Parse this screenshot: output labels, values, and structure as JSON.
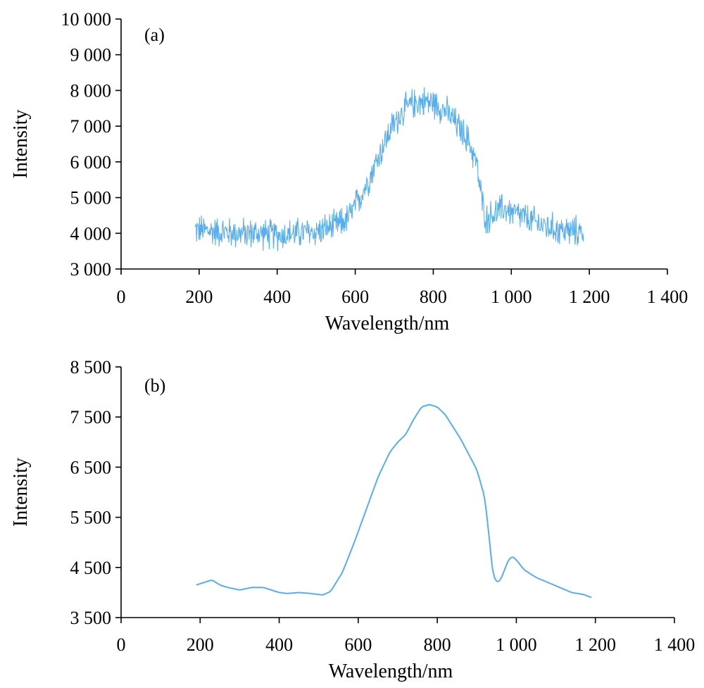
{
  "chart_data": [
    {
      "type": "line",
      "panel_label": "(a)",
      "xlabel": "Wavelength/nm",
      "ylabel": "Intensity",
      "xlim": [
        0,
        1400
      ],
      "ylim": [
        3000,
        10000
      ],
      "x_ticks": [
        0,
        200,
        400,
        600,
        800,
        1000,
        1200,
        1400
      ],
      "x_tick_labels": [
        "0",
        "200",
        "400",
        "600",
        "800",
        "1 000",
        "1 200",
        "1 400"
      ],
      "y_ticks": [
        3000,
        4000,
        5000,
        6000,
        7000,
        8000,
        9000,
        10000
      ],
      "y_tick_labels": [
        "3 000",
        "4 000",
        "5 000",
        "6 000",
        "7 000",
        "8 000",
        "9 000",
        "10 000"
      ],
      "grid": false,
      "line_color": "#56aef0",
      "noise_amplitude": 520,
      "series": [
        {
          "x": [
            190,
            250,
            300,
            350,
            400,
            450,
            500,
            550,
            580,
            600,
            630,
            660,
            690,
            720,
            750,
            780,
            800,
            830,
            860,
            890,
            910,
            925,
            935,
            950,
            980,
            1000,
            1050,
            1100,
            1150,
            1185
          ],
          "values": [
            4100,
            4050,
            4000,
            4000,
            3950,
            4000,
            4050,
            4200,
            4400,
            4750,
            5400,
            6150,
            6900,
            7400,
            7650,
            7700,
            7650,
            7450,
            7050,
            6600,
            6000,
            4900,
            4400,
            4500,
            4700,
            4600,
            4350,
            4150,
            4050,
            4050
          ]
        }
      ]
    },
    {
      "type": "line",
      "panel_label": "(b)",
      "xlabel": "Wavelength/nm",
      "ylabel": "Intensity",
      "xlim": [
        0,
        1400
      ],
      "ylim": [
        3500,
        8500
      ],
      "x_ticks": [
        0,
        200,
        400,
        600,
        800,
        1000,
        1200,
        1400
      ],
      "x_tick_labels": [
        "0",
        "200",
        "400",
        "600",
        "800",
        "1 000",
        "1 200",
        "1 400"
      ],
      "y_ticks": [
        3500,
        4500,
        5500,
        6500,
        7500,
        8500
      ],
      "y_tick_labels": [
        "3 500",
        "4 500",
        "5 500",
        "6 500",
        "7 500",
        "8 500"
      ],
      "grid": false,
      "line_color": "#56aef0",
      "series": [
        {
          "x": [
            190,
            210,
            230,
            250,
            270,
            300,
            330,
            360,
            380,
            400,
            420,
            450,
            480,
            510,
            530,
            560,
            590,
            620,
            650,
            680,
            700,
            720,
            740,
            760,
            780,
            800,
            820,
            840,
            860,
            880,
            900,
            920,
            930,
            940,
            950,
            960,
            970,
            980,
            990,
            1000,
            1020,
            1050,
            1080,
            1110,
            1140,
            1170,
            1190
          ],
          "values": [
            4150,
            4200,
            4250,
            4150,
            4100,
            4050,
            4100,
            4100,
            4050,
            4000,
            3980,
            4000,
            3980,
            3950,
            4020,
            4400,
            5000,
            5650,
            6300,
            6800,
            7000,
            7150,
            7450,
            7700,
            7750,
            7700,
            7550,
            7300,
            7050,
            6750,
            6450,
            5900,
            5200,
            4400,
            4200,
            4250,
            4450,
            4650,
            4720,
            4650,
            4450,
            4300,
            4200,
            4100,
            4000,
            3960,
            3900
          ]
        }
      ]
    }
  ]
}
